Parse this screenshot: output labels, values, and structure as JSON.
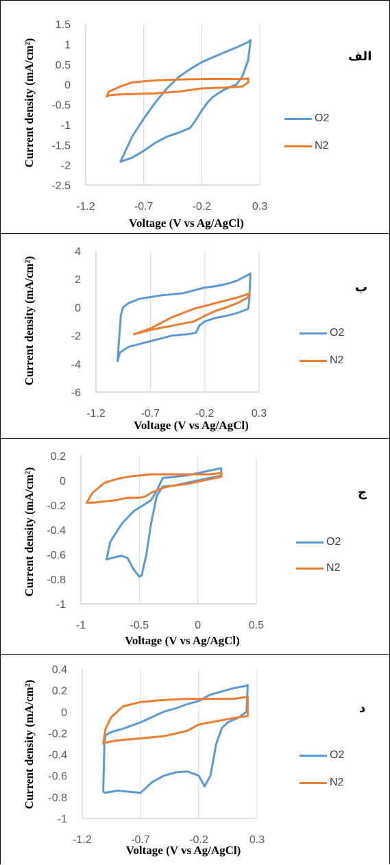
{
  "colors": {
    "O2": "#5b9bd5",
    "N2": "#ed7d31",
    "axis": "#bfbfbf",
    "grid": "#d9d9d9",
    "tick_text": "#595959"
  },
  "chart_data": [
    {
      "type": "line",
      "panel_label": "الف",
      "xlabel": "Voltage (V vs Ag/AgCl)",
      "ylabel": "Current density (mA/cm²)",
      "xlim": [
        -1.2,
        0.3
      ],
      "ylim": [
        -2.5,
        1.5
      ],
      "xticks": [
        "-1.2",
        "-0.7",
        "-0.2",
        "0.3"
      ],
      "yticks": [
        "1.5",
        "1",
        "0.5",
        "0",
        "-0.5",
        "-1",
        "-1.5",
        "-2",
        "-2.5"
      ],
      "legend_position": "right",
      "series": [
        {
          "name": "O2",
          "x": [
            -0.9,
            -0.8,
            -0.7,
            -0.6,
            -0.5,
            -0.4,
            -0.3,
            -0.2,
            -0.1,
            0.0,
            0.1,
            0.2,
            0.22,
            0.2,
            0.15,
            0.1,
            0.0,
            -0.1,
            -0.15,
            -0.2,
            -0.25,
            -0.3,
            -0.4,
            -0.5,
            -0.6,
            -0.7,
            -0.8,
            -0.9
          ],
          "y": [
            -1.92,
            -1.3,
            -0.85,
            -0.45,
            -0.1,
            0.18,
            0.38,
            0.55,
            0.68,
            0.8,
            0.92,
            1.05,
            1.1,
            0.6,
            0.2,
            0.0,
            -0.12,
            -0.3,
            -0.45,
            -0.65,
            -0.88,
            -1.08,
            -1.2,
            -1.3,
            -1.45,
            -1.65,
            -1.82,
            -1.92
          ]
        },
        {
          "name": "N2",
          "x": [
            -1.02,
            -1.0,
            -0.9,
            -0.8,
            -0.6,
            -0.4,
            -0.2,
            0.0,
            0.15,
            0.2,
            0.2,
            0.15,
            0.0,
            -0.2,
            -0.4,
            -0.6,
            -0.8,
            -0.9,
            -1.0,
            -1.02
          ],
          "y": [
            -0.3,
            -0.18,
            -0.05,
            0.05,
            0.1,
            0.12,
            0.13,
            0.13,
            0.13,
            0.15,
            0.05,
            -0.05,
            -0.08,
            -0.1,
            -0.18,
            -0.22,
            -0.24,
            -0.25,
            -0.27,
            -0.3
          ]
        }
      ]
    },
    {
      "type": "line",
      "panel_label": "ب",
      "xlabel": "Voltage (V vs Ag/AgCl)",
      "ylabel": "Current density (mA/cm²)",
      "xlim": [
        -1.2,
        0.3
      ],
      "ylim": [
        -6,
        4
      ],
      "xticks": [
        "-1.2",
        "-0.7",
        "-0.2",
        "0.3"
      ],
      "yticks": [
        "4",
        "2",
        "0",
        "-2",
        "-4",
        "-6"
      ],
      "legend_position": "right",
      "series": [
        {
          "name": "O2",
          "x": [
            -1.0,
            -0.99,
            -0.97,
            -0.95,
            -0.9,
            -0.8,
            -0.6,
            -0.4,
            -0.3,
            -0.2,
            -0.1,
            0.0,
            0.1,
            0.15,
            0.2,
            0.22,
            0.21,
            0.2,
            0.1,
            0.0,
            -0.1,
            -0.2,
            -0.25,
            -0.28,
            -0.35,
            -0.5,
            -0.7,
            -0.9,
            -0.98,
            -1.0
          ],
          "y": [
            -3.8,
            -2.5,
            -0.5,
            0.0,
            0.3,
            0.6,
            0.85,
            1.0,
            1.2,
            1.4,
            1.5,
            1.65,
            1.9,
            2.1,
            2.3,
            2.4,
            0.5,
            -0.1,
            -0.4,
            -0.6,
            -0.75,
            -1.0,
            -1.3,
            -1.8,
            -1.9,
            -2.0,
            -2.4,
            -2.8,
            -3.2,
            -3.8
          ]
        },
        {
          "name": "N2",
          "x": [
            -0.85,
            -0.7,
            -0.5,
            -0.3,
            -0.1,
            0.0,
            0.1,
            0.2,
            0.21,
            0.2,
            0.1,
            0.0,
            -0.1,
            -0.2,
            -0.3,
            -0.5,
            -0.7,
            -0.85
          ],
          "y": [
            -1.9,
            -1.5,
            -0.7,
            -0.1,
            0.3,
            0.5,
            0.7,
            0.95,
            1.0,
            0.7,
            0.3,
            0.0,
            -0.25,
            -0.6,
            -1.0,
            -1.3,
            -1.6,
            -1.9
          ]
        }
      ]
    },
    {
      "type": "line",
      "panel_label": "ج",
      "xlabel": "Voltage (V vs Ag/AgCl)",
      "ylabel": "Current density (mA/cm²)",
      "xlim": [
        -1,
        0.5
      ],
      "ylim": [
        -1,
        0.2
      ],
      "xticks": [
        "-1",
        "-0.5",
        "0",
        "0.5"
      ],
      "yticks": [
        "0.2",
        "0",
        "-0.2",
        "-0.4",
        "-0.6",
        "-0.8",
        "-1"
      ],
      "legend_position": "right",
      "series": [
        {
          "name": "O2",
          "x": [
            -0.78,
            -0.7,
            -0.65,
            -0.6,
            -0.55,
            -0.5,
            -0.48,
            -0.44,
            -0.4,
            -0.35,
            -0.3,
            -0.2,
            -0.1,
            0.0,
            0.1,
            0.2,
            0.2,
            0.1,
            0.0,
            -0.1,
            -0.2,
            -0.3,
            -0.35,
            -0.4,
            -0.45,
            -0.55,
            -0.65,
            -0.75,
            -0.78
          ],
          "y": [
            -0.64,
            -0.62,
            -0.61,
            -0.63,
            -0.72,
            -0.78,
            -0.77,
            -0.6,
            -0.35,
            -0.12,
            -0.05,
            -0.04,
            -0.02,
            0.0,
            0.02,
            0.04,
            0.1,
            0.08,
            0.06,
            0.04,
            0.03,
            0.02,
            -0.08,
            -0.16,
            -0.19,
            -0.25,
            -0.35,
            -0.5,
            -0.64
          ]
        },
        {
          "name": "N2",
          "x": [
            -0.95,
            -0.9,
            -0.8,
            -0.7,
            -0.6,
            -0.5,
            -0.4,
            -0.3,
            -0.2,
            -0.1,
            0.0,
            0.1,
            0.2,
            0.2,
            0.1,
            0.0,
            -0.1,
            -0.2,
            -0.3,
            -0.4,
            -0.45,
            -0.5,
            -0.6,
            -0.7,
            -0.8,
            -0.9,
            -0.95
          ],
          "y": [
            -0.18,
            -0.1,
            -0.02,
            0.01,
            0.03,
            0.04,
            0.05,
            0.05,
            0.05,
            0.05,
            0.05,
            0.05,
            0.06,
            0.03,
            0.01,
            -0.01,
            -0.03,
            -0.04,
            -0.06,
            -0.1,
            -0.13,
            -0.14,
            -0.14,
            -0.16,
            -0.17,
            -0.18,
            -0.18
          ]
        }
      ]
    },
    {
      "type": "line",
      "panel_label": "د",
      "xlabel": "Voltage (V vs Ag/AgCl)",
      "ylabel": "Current density (mA/cm²)",
      "xlim": [
        -1.2,
        0.3
      ],
      "ylim": [
        -1,
        0.4
      ],
      "xticks": [
        "-1.2",
        "-0.7",
        "-0.2",
        "0.3"
      ],
      "yticks": [
        "0.4",
        "0.2",
        "0",
        "-0.2",
        "-0.4",
        "-0.6",
        "-0.8",
        "-1"
      ],
      "legend_position": "right",
      "series": [
        {
          "name": "O2",
          "x": [
            -1.02,
            -1.01,
            -1.0,
            -0.95,
            -0.85,
            -0.7,
            -0.6,
            -0.5,
            -0.4,
            -0.3,
            -0.2,
            -0.1,
            0.0,
            0.1,
            0.2,
            0.22,
            0.21,
            0.15,
            0.05,
            0.0,
            -0.05,
            -0.1,
            -0.15,
            -0.2,
            -0.3,
            -0.4,
            -0.5,
            -0.6,
            -0.7,
            -0.8,
            -0.9,
            -1.0,
            -1.02,
            -1.02
          ],
          "y": [
            -0.75,
            -0.3,
            -0.22,
            -0.19,
            -0.16,
            -0.1,
            -0.05,
            0.0,
            0.03,
            0.07,
            0.1,
            0.16,
            0.19,
            0.22,
            0.24,
            0.25,
            0.0,
            -0.05,
            -0.1,
            -0.15,
            -0.3,
            -0.6,
            -0.7,
            -0.6,
            -0.56,
            -0.57,
            -0.6,
            -0.66,
            -0.76,
            -0.75,
            -0.74,
            -0.76,
            -0.75,
            -0.75
          ]
        },
        {
          "name": "N2",
          "x": [
            -1.02,
            -1.0,
            -0.95,
            -0.85,
            -0.7,
            -0.5,
            -0.3,
            -0.1,
            0.1,
            0.22,
            0.22,
            0.1,
            0.0,
            -0.1,
            -0.2,
            -0.3,
            -0.5,
            -0.7,
            -0.9,
            -1.0,
            -1.02
          ],
          "y": [
            -0.3,
            -0.16,
            -0.05,
            0.05,
            0.09,
            0.11,
            0.12,
            0.12,
            0.12,
            0.14,
            -0.04,
            -0.06,
            -0.08,
            -0.1,
            -0.12,
            -0.18,
            -0.23,
            -0.25,
            -0.27,
            -0.29,
            -0.3
          ]
        }
      ]
    }
  ]
}
